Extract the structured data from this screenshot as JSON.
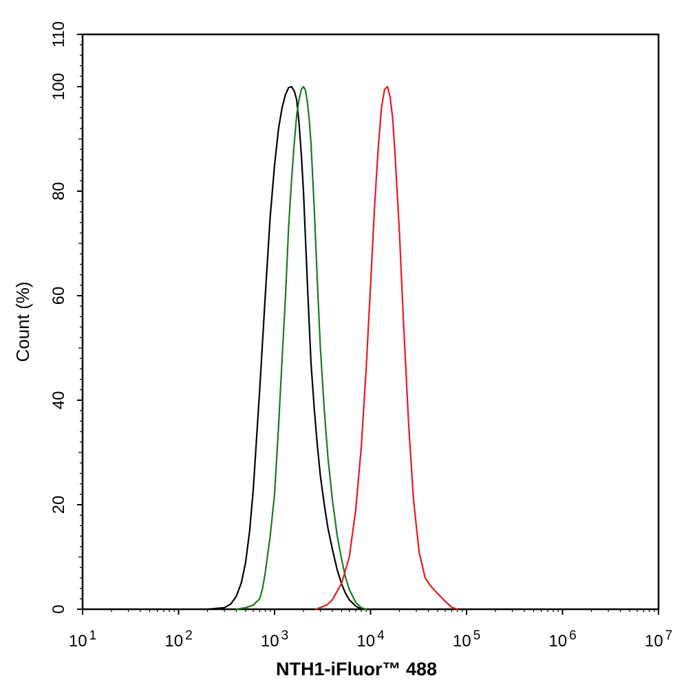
{
  "chart_data": {
    "type": "line",
    "title": "",
    "xlabel": "NTH1-iFluor™ 488",
    "ylabel": "Count  (%)",
    "xscale": "log",
    "xlim": [
      10,
      10000000
    ],
    "ylim": [
      0,
      110
    ],
    "grid": false,
    "legend": "none",
    "x_tick_labels": [
      {
        "base": "10",
        "exp": "1"
      },
      {
        "base": "10",
        "exp": "2"
      },
      {
        "base": "10",
        "exp": "3"
      },
      {
        "base": "10",
        "exp": "4"
      },
      {
        "base": "10",
        "exp": "5"
      },
      {
        "base": "10",
        "exp": "6"
      },
      {
        "base": "10",
        "exp": "7"
      }
    ],
    "y_tick_labels": [
      "0",
      "20",
      "40",
      "60",
      "80",
      "100",
      "110"
    ],
    "series": [
      {
        "color": "#000000",
        "points": [
          [
            200,
            0
          ],
          [
            300,
            0.3
          ],
          [
            350,
            1
          ],
          [
            400,
            2.5
          ],
          [
            450,
            5
          ],
          [
            500,
            9
          ],
          [
            550,
            15
          ],
          [
            600,
            23
          ],
          [
            700,
            42
          ],
          [
            800,
            60
          ],
          [
            900,
            75
          ],
          [
            1000,
            85
          ],
          [
            1100,
            92
          ],
          [
            1200,
            96
          ],
          [
            1300,
            98.5
          ],
          [
            1400,
            99.8
          ],
          [
            1500,
            100
          ],
          [
            1600,
            99.2
          ],
          [
            1700,
            97.5
          ],
          [
            1800,
            93
          ],
          [
            1900,
            87
          ],
          [
            2000,
            80
          ],
          [
            2200,
            62
          ],
          [
            2400,
            47
          ],
          [
            2600,
            38
          ],
          [
            2800,
            31
          ],
          [
            3000,
            25.5
          ],
          [
            3300,
            20
          ],
          [
            3600,
            15.5
          ],
          [
            4000,
            11.5
          ],
          [
            4500,
            7.5
          ],
          [
            5000,
            4.8
          ],
          [
            5500,
            3
          ],
          [
            6000,
            1.8
          ],
          [
            7000,
            0.6
          ],
          [
            8000,
            0
          ]
        ]
      },
      {
        "color": "#1a7a1a",
        "points": [
          [
            400,
            0
          ],
          [
            500,
            0.3
          ],
          [
            600,
            0.8
          ],
          [
            700,
            2
          ],
          [
            750,
            4
          ],
          [
            800,
            7
          ],
          [
            900,
            14
          ],
          [
            1000,
            22
          ],
          [
            1100,
            35
          ],
          [
            1200,
            48
          ],
          [
            1300,
            60
          ],
          [
            1400,
            73
          ],
          [
            1500,
            82
          ],
          [
            1600,
            89
          ],
          [
            1700,
            94.5
          ],
          [
            1800,
            97.5
          ],
          [
            1900,
            99.5
          ],
          [
            2000,
            100
          ],
          [
            2100,
            99.3
          ],
          [
            2200,
            97
          ],
          [
            2300,
            93.5
          ],
          [
            2400,
            89
          ],
          [
            2600,
            76
          ],
          [
            2800,
            62
          ],
          [
            3000,
            50
          ],
          [
            3300,
            38
          ],
          [
            3600,
            29
          ],
          [
            4000,
            21
          ],
          [
            4500,
            14
          ],
          [
            5000,
            9.5
          ],
          [
            5500,
            6
          ],
          [
            6000,
            3.8
          ],
          [
            7000,
            1.3
          ],
          [
            8000,
            0.3
          ],
          [
            9000,
            0
          ]
        ]
      },
      {
        "color": "#e8191c",
        "points": [
          [
            2700,
            0
          ],
          [
            3500,
            0.8
          ],
          [
            4000,
            1.8
          ],
          [
            5000,
            5
          ],
          [
            6000,
            10
          ],
          [
            7000,
            19
          ],
          [
            8000,
            31
          ],
          [
            9000,
            46
          ],
          [
            10000,
            62
          ],
          [
            11000,
            77
          ],
          [
            12000,
            88
          ],
          [
            13000,
            96
          ],
          [
            14000,
            99.5
          ],
          [
            15000,
            100
          ],
          [
            16000,
            98
          ],
          [
            17000,
            94
          ],
          [
            18000,
            87
          ],
          [
            20000,
            72
          ],
          [
            22000,
            55
          ],
          [
            25000,
            35
          ],
          [
            28000,
            21
          ],
          [
            32000,
            11
          ],
          [
            37000,
            6
          ],
          [
            42000,
            4.5
          ],
          [
            50000,
            3
          ],
          [
            60000,
            1.5
          ],
          [
            70000,
            0.4
          ],
          [
            80000,
            0
          ]
        ]
      }
    ]
  }
}
